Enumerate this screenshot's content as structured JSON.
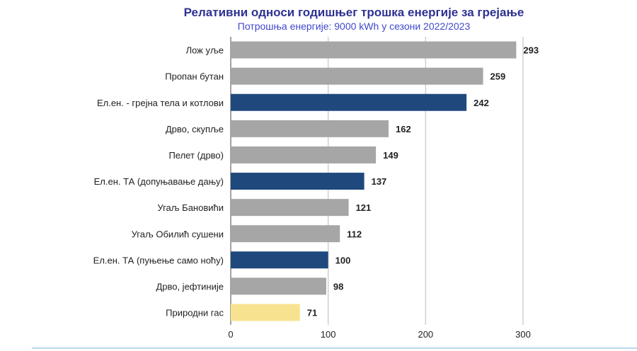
{
  "chart_data": {
    "type": "bar",
    "orientation": "horizontal",
    "title": "Релативни односи годишњег трошка енергије за грејање",
    "subtitle": "Потрошња енергије: 9000 kWh у сезони 2022/2023",
    "xlabel": "",
    "ylabel": "",
    "xlim": [
      0,
      300
    ],
    "xticks": [
      0,
      100,
      200,
      300
    ],
    "grid": true,
    "categories": [
      "Лож уље",
      "Пропан бутан",
      "Ел.ен. - грејна тела и котлови",
      "Дрво, скупље",
      "Пелет (дрво)",
      "Ел.ен. ТА (допуњавање дању)",
      "Угаљ Бановићи",
      "Угаљ Обилић  сушени",
      "Ел.ен. ТА (пуњење само ноћу)",
      "Дрво, јефтиније",
      "Природни  гас"
    ],
    "values": [
      293,
      259,
      242,
      162,
      149,
      137,
      121,
      112,
      100,
      98,
      71
    ],
    "bar_colors": [
      "#a6a6a6",
      "#a6a6a6",
      "#1f497d",
      "#a6a6a6",
      "#a6a6a6",
      "#1f497d",
      "#a6a6a6",
      "#a6a6a6",
      "#1f497d",
      "#a6a6a6",
      "#f7e38f"
    ]
  }
}
